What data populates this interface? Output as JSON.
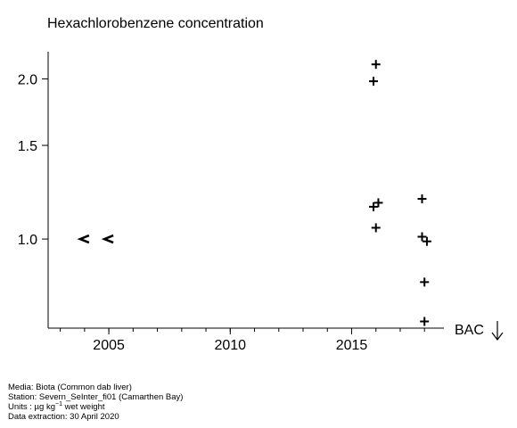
{
  "chart_data": {
    "type": "scatter",
    "title": "Hexachlorobenzene concentration",
    "xlabel": "",
    "ylabel": "",
    "xlim": [
      2002.5,
      2018.8
    ],
    "ylim_log": [
      0.68,
      2.25
    ],
    "y_scale": "log",
    "grid": false,
    "x_ticks": [
      2005,
      2010,
      2015
    ],
    "x_tick_labels": [
      "2005",
      "2010",
      "2015"
    ],
    "y_ticks": [
      1.0,
      1.5,
      2.0
    ],
    "y_tick_labels": [
      "1.0",
      "1.5",
      "2.0"
    ],
    "series": [
      {
        "marker": "+",
        "points": [
          {
            "x": 2016.0,
            "y": 2.13
          },
          {
            "x": 2015.9,
            "y": 1.98
          },
          {
            "x": 2016.1,
            "y": 1.17
          },
          {
            "x": 2015.9,
            "y": 1.15
          },
          {
            "x": 2016.0,
            "y": 1.05
          },
          {
            "x": 2017.9,
            "y": 1.19
          },
          {
            "x": 2017.9,
            "y": 1.01
          },
          {
            "x": 2018.1,
            "y": 0.99
          },
          {
            "x": 2018.0,
            "y": 0.83
          },
          {
            "x": 2018.0,
            "y": 0.7
          }
        ]
      },
      {
        "marker": "<",
        "points": [
          {
            "x": 2004.0,
            "y": 1.0
          },
          {
            "x": 2005.0,
            "y": 1.0
          }
        ]
      }
    ],
    "annotations": [
      {
        "text": "BAC",
        "symbol": "arrow-down"
      }
    ]
  },
  "footer": {
    "media": "Media: Biota (Common dab liver)",
    "station": "Station: Severn_SeInter_fi01 (Camarthen Bay)",
    "units_prefix": "Units : µg kg",
    "units_exp": "−1",
    "units_suffix": " wet weight",
    "extraction": "Data extraction: 30 April 2020"
  }
}
